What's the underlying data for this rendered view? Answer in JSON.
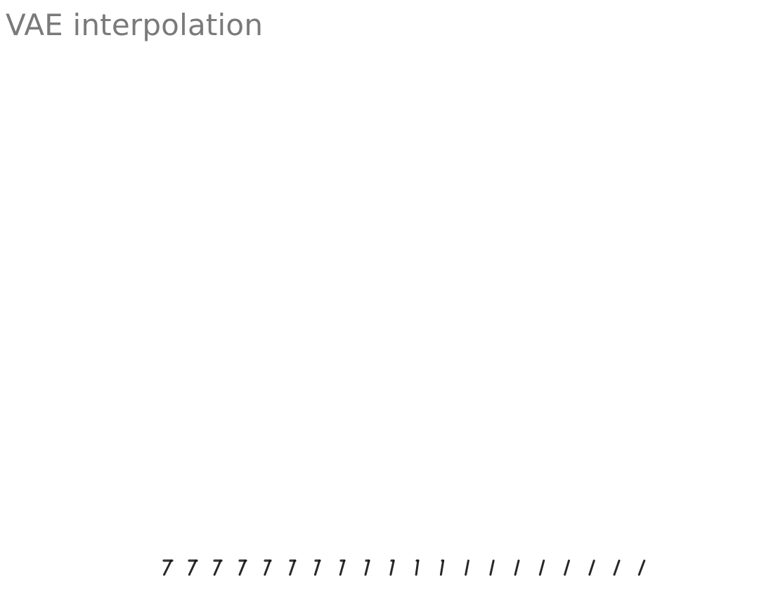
{
  "slide": {
    "title": "VAE interpolation"
  },
  "interpolation_strip": {
    "description_icon": "digit-interpolation-strip",
    "frame_count": 20,
    "start_digit": "7",
    "end_digit": "1",
    "stroke_color": "#111111"
  }
}
